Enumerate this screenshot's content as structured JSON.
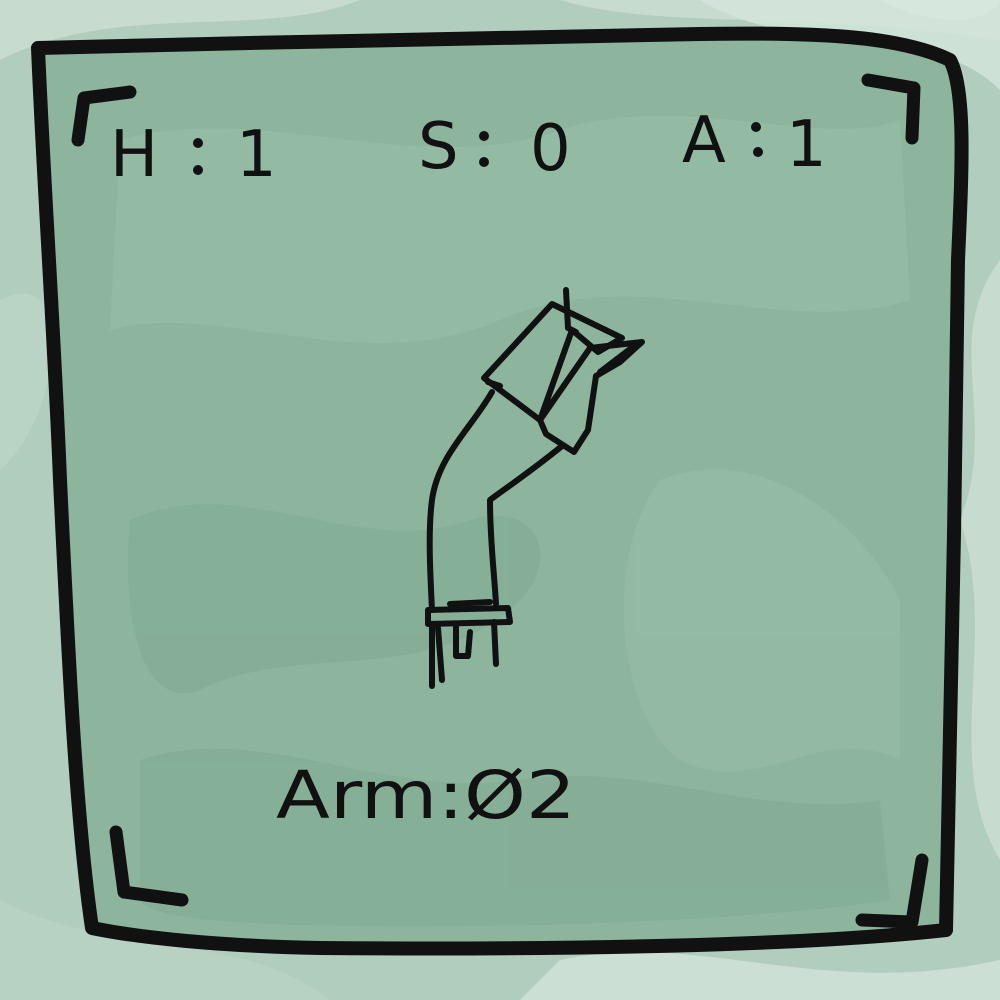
{
  "card": {
    "stats": {
      "h": {
        "label": "H",
        "value": "1"
      },
      "s": {
        "label": "S",
        "value": "0"
      },
      "a": {
        "label": "A",
        "value": "1"
      }
    },
    "part_label": "Arm:Ø2",
    "illustration_icon": "robot-arm-icon"
  },
  "colors": {
    "background": "#c9ddd2",
    "wash": "#a9c8b7",
    "card_fill": "#8db49d",
    "ink": "#111111"
  }
}
